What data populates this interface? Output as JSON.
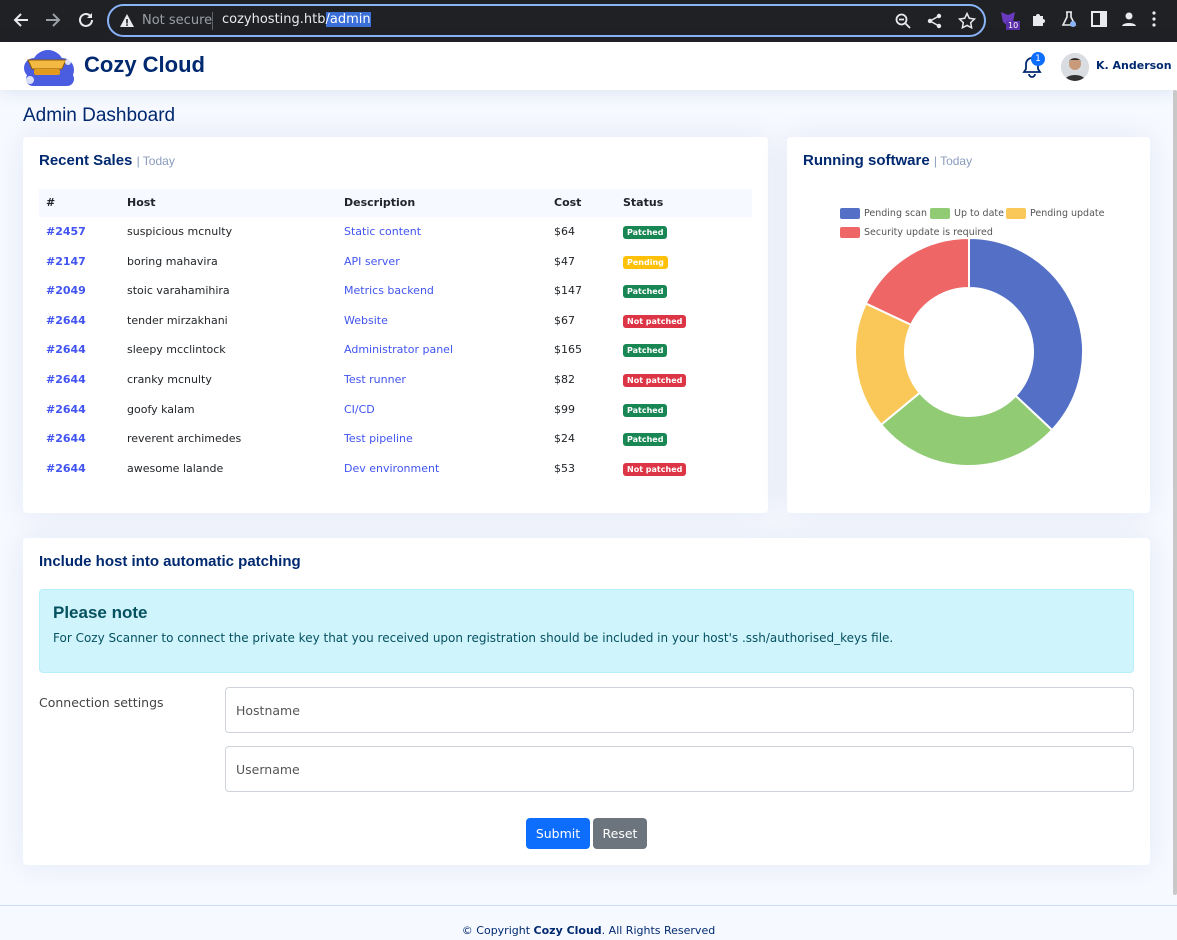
{
  "browser": {
    "not_secure": "Not secure",
    "url_host": "cozyhosting.htb",
    "url_path": "/admin",
    "ext_badge": "10"
  },
  "header": {
    "brand": "Cozy Cloud",
    "notification_count": "1",
    "user_name": "K. Anderson"
  },
  "page": {
    "title": "Admin Dashboard"
  },
  "recent_sales": {
    "title": "Recent Sales",
    "subtitle": "| Today",
    "columns": [
      "#",
      "Host",
      "Description",
      "Cost",
      "Status"
    ],
    "rows": [
      {
        "id": "#2457",
        "host": "suspicious mcnulty",
        "desc": "Static content",
        "cost": "$64",
        "status": "Patched"
      },
      {
        "id": "#2147",
        "host": "boring mahavira",
        "desc": "API server",
        "cost": "$47",
        "status": "Pending"
      },
      {
        "id": "#2049",
        "host": "stoic varahamihira",
        "desc": "Metrics backend",
        "cost": "$147",
        "status": "Patched"
      },
      {
        "id": "#2644",
        "host": "tender mirzakhani",
        "desc": "Website",
        "cost": "$67",
        "status": "Not patched"
      },
      {
        "id": "#2644",
        "host": "sleepy mcclintock",
        "desc": "Administrator panel",
        "cost": "$165",
        "status": "Patched"
      },
      {
        "id": "#2644",
        "host": "cranky mcnulty",
        "desc": "Test runner",
        "cost": "$82",
        "status": "Not patched"
      },
      {
        "id": "#2644",
        "host": "goofy kalam",
        "desc": "CI/CD",
        "cost": "$99",
        "status": "Patched"
      },
      {
        "id": "#2644",
        "host": "reverent archimedes",
        "desc": "Test pipeline",
        "cost": "$24",
        "status": "Patched"
      },
      {
        "id": "#2644",
        "host": "awesome lalande",
        "desc": "Dev environment",
        "cost": "$53",
        "status": "Not patched"
      }
    ],
    "status_colors": {
      "Patched": "#198754",
      "Pending": "#ffc107",
      "Not patched": "#dc3545"
    }
  },
  "running_software": {
    "title": "Running software",
    "subtitle": "| Today"
  },
  "chart_data": {
    "type": "pie",
    "donut": true,
    "categories": [
      "Pending scan",
      "Up to date",
      "Pending update",
      "Security update is required"
    ],
    "values": [
      37,
      27,
      18,
      18
    ],
    "colors": [
      "#5470c6",
      "#91cc75",
      "#fac858",
      "#ee6666"
    ],
    "legend": "top"
  },
  "patching": {
    "title": "Include host into automatic patching",
    "note_title": "Please note",
    "note_text": "For Cozy Scanner to connect the private key that you received upon registration should be included in your host's .ssh/authorised_keys file.",
    "connection_label": "Connection settings",
    "hostname_placeholder": "Hostname",
    "username_placeholder": "Username",
    "submit_label": "Submit",
    "reset_label": "Reset"
  },
  "footer": {
    "prefix": "© Copyright ",
    "brand": "Cozy Cloud",
    "suffix": ". All Rights Reserved"
  }
}
